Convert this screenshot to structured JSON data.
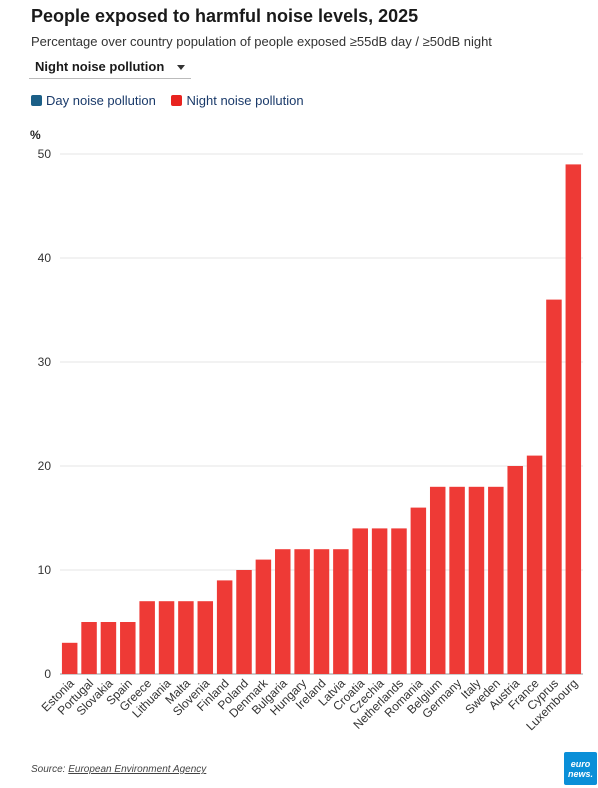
{
  "header": {
    "title": "People exposed to harmful noise levels, 2025",
    "subtitle": "Percentage over country population of people exposed ≥55dB day / ≥50dB night"
  },
  "selector": {
    "selected": "Night noise pollution"
  },
  "legend": [
    {
      "label": "Day noise pollution",
      "color": "#1b5f87"
    },
    {
      "label": "Night noise pollution",
      "color": "#e8231f"
    }
  ],
  "source": {
    "prefix": "Source: ",
    "link": "European Environment Agency"
  },
  "logo": {
    "line1": "euro",
    "line2": "news."
  },
  "chart_data": {
    "type": "bar",
    "title": "People exposed to harmful noise levels, 2025",
    "ylabel": "%",
    "ylim": [
      0,
      50
    ],
    "yticks": [
      0,
      10,
      20,
      30,
      40,
      50
    ],
    "grid": true,
    "legend_position": "top-left",
    "bar_color": "#ee3a36",
    "categories": [
      "Estonia",
      "Portugal",
      "Slovakia",
      "Spain",
      "Greece",
      "Lithuania",
      "Malta",
      "Slovenia",
      "Finland",
      "Poland",
      "Denmark",
      "Bulgaria",
      "Hungary",
      "Ireland",
      "Latvia",
      "Croatia",
      "Czechia",
      "Netherlands",
      "Romania",
      "Belgium",
      "Germany",
      "Italy",
      "Sweden",
      "Austria",
      "France",
      "Cyprus",
      "Luxembourg"
    ],
    "series": [
      {
        "name": "Night noise pollution",
        "values": [
          3,
          5,
          5,
          5,
          7,
          7,
          7,
          7,
          9,
          10,
          11,
          12,
          12,
          12,
          12,
          14,
          14,
          14,
          16,
          18,
          18,
          18,
          18,
          20,
          21,
          36,
          49
        ]
      }
    ]
  }
}
